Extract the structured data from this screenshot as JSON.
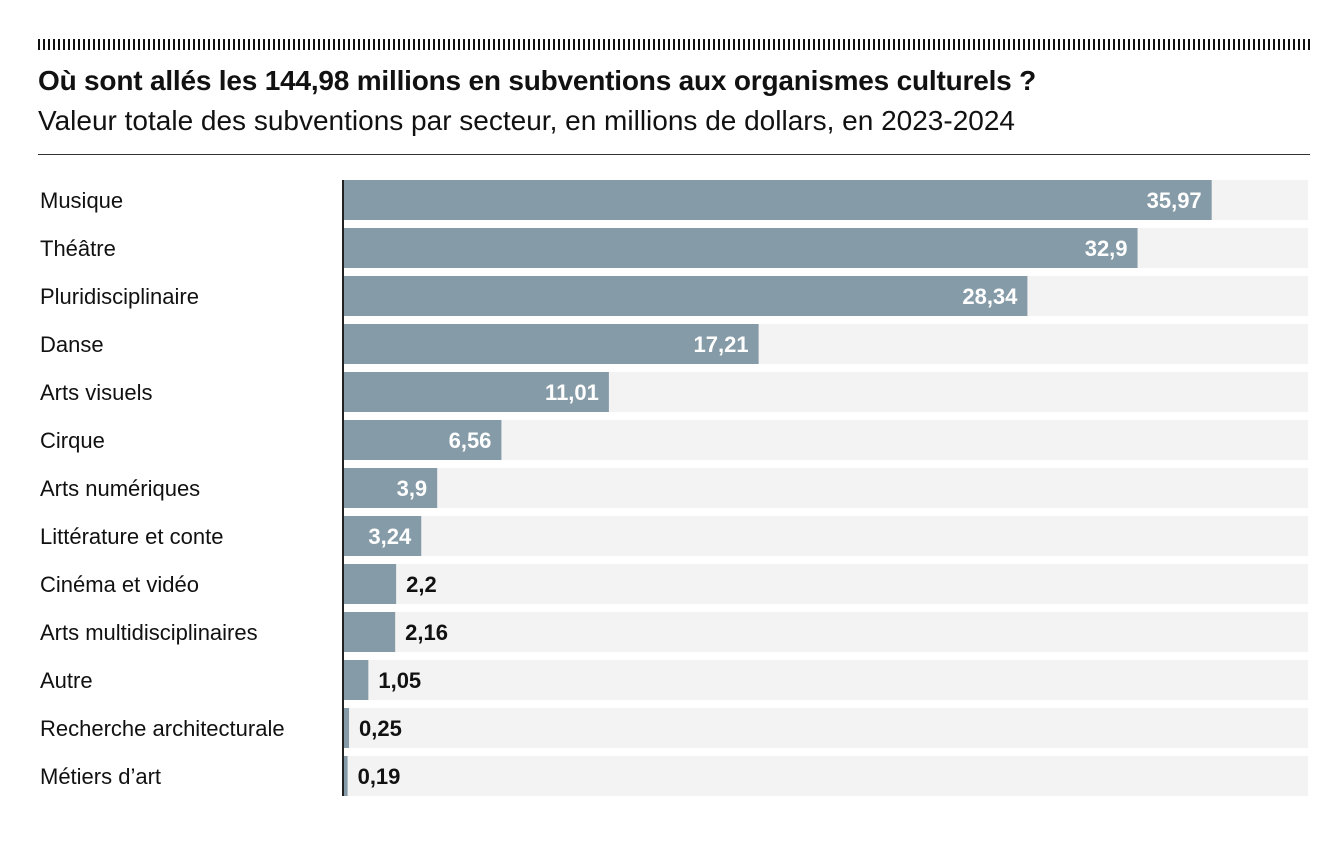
{
  "header": {
    "title": "Où sont allés les 144,98 millions en subventions aux organismes culturels ?",
    "subtitle": "Valeur totale des subventions par secteur, en millions de dollars, en 2023-2024"
  },
  "colors": {
    "bar": "#869ba8",
    "track": "#f3f3f3",
    "axis": "#222222",
    "label_inside": "#ffffff",
    "label_outside": "#111111"
  },
  "chart_data": {
    "type": "bar",
    "orientation": "horizontal",
    "title": "Où sont allés les 144,98 millions en subventions aux organismes culturels ?",
    "subtitle": "Valeur totale des subventions par secteur, en millions de dollars, en 2023-2024",
    "categories": [
      "Musique",
      "Théâtre",
      "Pluridisciplinaire",
      "Danse",
      "Arts visuels",
      "Cirque",
      "Arts numériques",
      "Littérature et conte",
      "Cinéma et vidéo",
      "Arts multidisciplinaires",
      "Autre",
      "Recherche architecturale",
      "Métiers d’art"
    ],
    "values": [
      35.97,
      32.9,
      28.34,
      17.21,
      11.01,
      6.56,
      3.9,
      3.24,
      2.2,
      2.16,
      1.05,
      0.25,
      0.19
    ],
    "value_labels": [
      "35,97",
      "32,9",
      "28,34",
      "17,21",
      "11,01",
      "6,56",
      "3,9",
      "3,24",
      "2,2",
      "2,16",
      "1,05",
      "0,25",
      "0,19"
    ],
    "xlim": [
      0,
      40
    ],
    "grid": false,
    "legend": "none"
  }
}
